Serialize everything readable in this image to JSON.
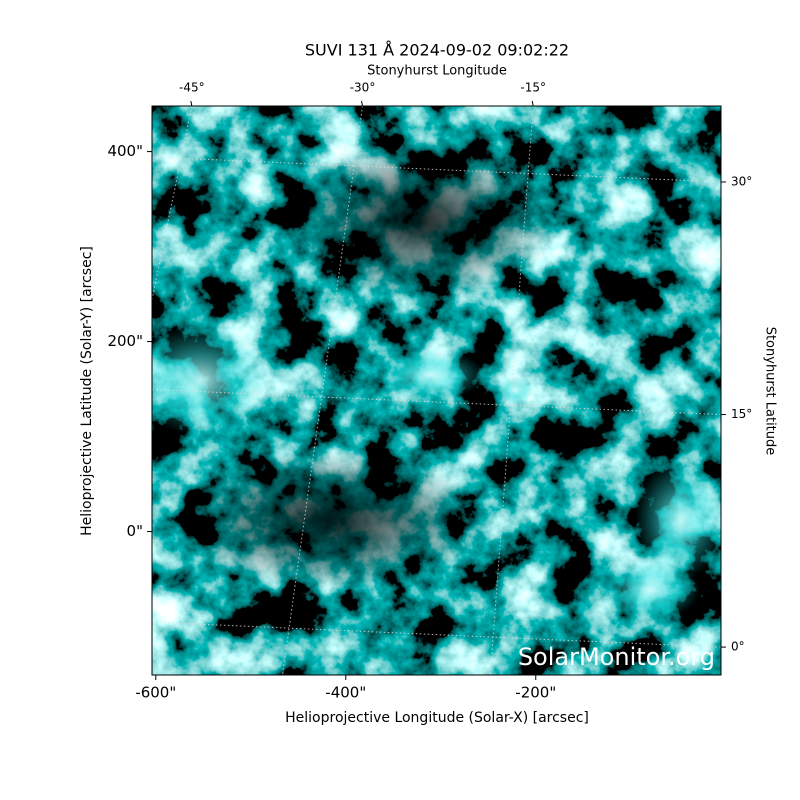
{
  "chart_data": {
    "type": "image",
    "title": "SUVI 131 Å 2024-09-02 09:02:22",
    "xlabel": "Helioprojective Longitude (Solar-X) [arcsec]",
    "ylabel": "Helioprojective Latitude (Solar-Y) [arcsec]",
    "x2label": "Stonyhurst Longitude",
    "y2label": "Stonyhurst Latitude",
    "annotation": "SolarMonitor.org",
    "xlim": [
      -604,
      -5
    ],
    "xticks": [
      {
        "value": -600,
        "label": "-600\""
      },
      {
        "value": -400,
        "label": "-400\""
      },
      {
        "value": -200,
        "label": "-200\""
      }
    ],
    "ylim": [
      -151,
      448
    ],
    "yticks": [
      {
        "value": 0,
        "label": "0\""
      },
      {
        "value": 200,
        "label": "200\""
      },
      {
        "value": 400,
        "label": "400\""
      }
    ],
    "x2lim": [
      -48.5,
      1.5
    ],
    "x2ticks": [
      {
        "value": -45,
        "label": "-45°"
      },
      {
        "value": -30,
        "label": "-30°"
      },
      {
        "value": -15,
        "label": "-15°"
      }
    ],
    "y2lim": [
      -1.8,
      34.9
    ],
    "y2ticks": [
      {
        "value": 0,
        "label": "0°"
      },
      {
        "value": 15,
        "label": "15°"
      },
      {
        "value": 30,
        "label": "30°"
      }
    ],
    "grid": true,
    "color": "#00e5e5"
  }
}
